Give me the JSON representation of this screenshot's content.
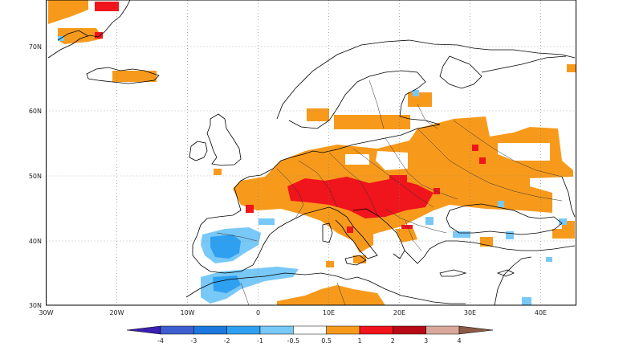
{
  "map": {
    "lat_labels": [
      "70N",
      "60N",
      "50N",
      "40N",
      "30N"
    ],
    "lon_labels": [
      "30W",
      "20W",
      "10W",
      "0",
      "10E",
      "20E",
      "30E",
      "40E"
    ]
  },
  "legend": {
    "labels": [
      "-4",
      "-3",
      "-2",
      "-1",
      "-0.5",
      "0.5",
      "1",
      "2",
      "3",
      "4"
    ],
    "colors": [
      "#3a1fb0",
      "#3f5fd1",
      "#1c78dc",
      "#2fa0f0",
      "#78c8f8",
      "#ffffff",
      "#f79a1c",
      "#f0141c",
      "#b80a16",
      "#d9a89a",
      "#8c5a46"
    ]
  }
}
